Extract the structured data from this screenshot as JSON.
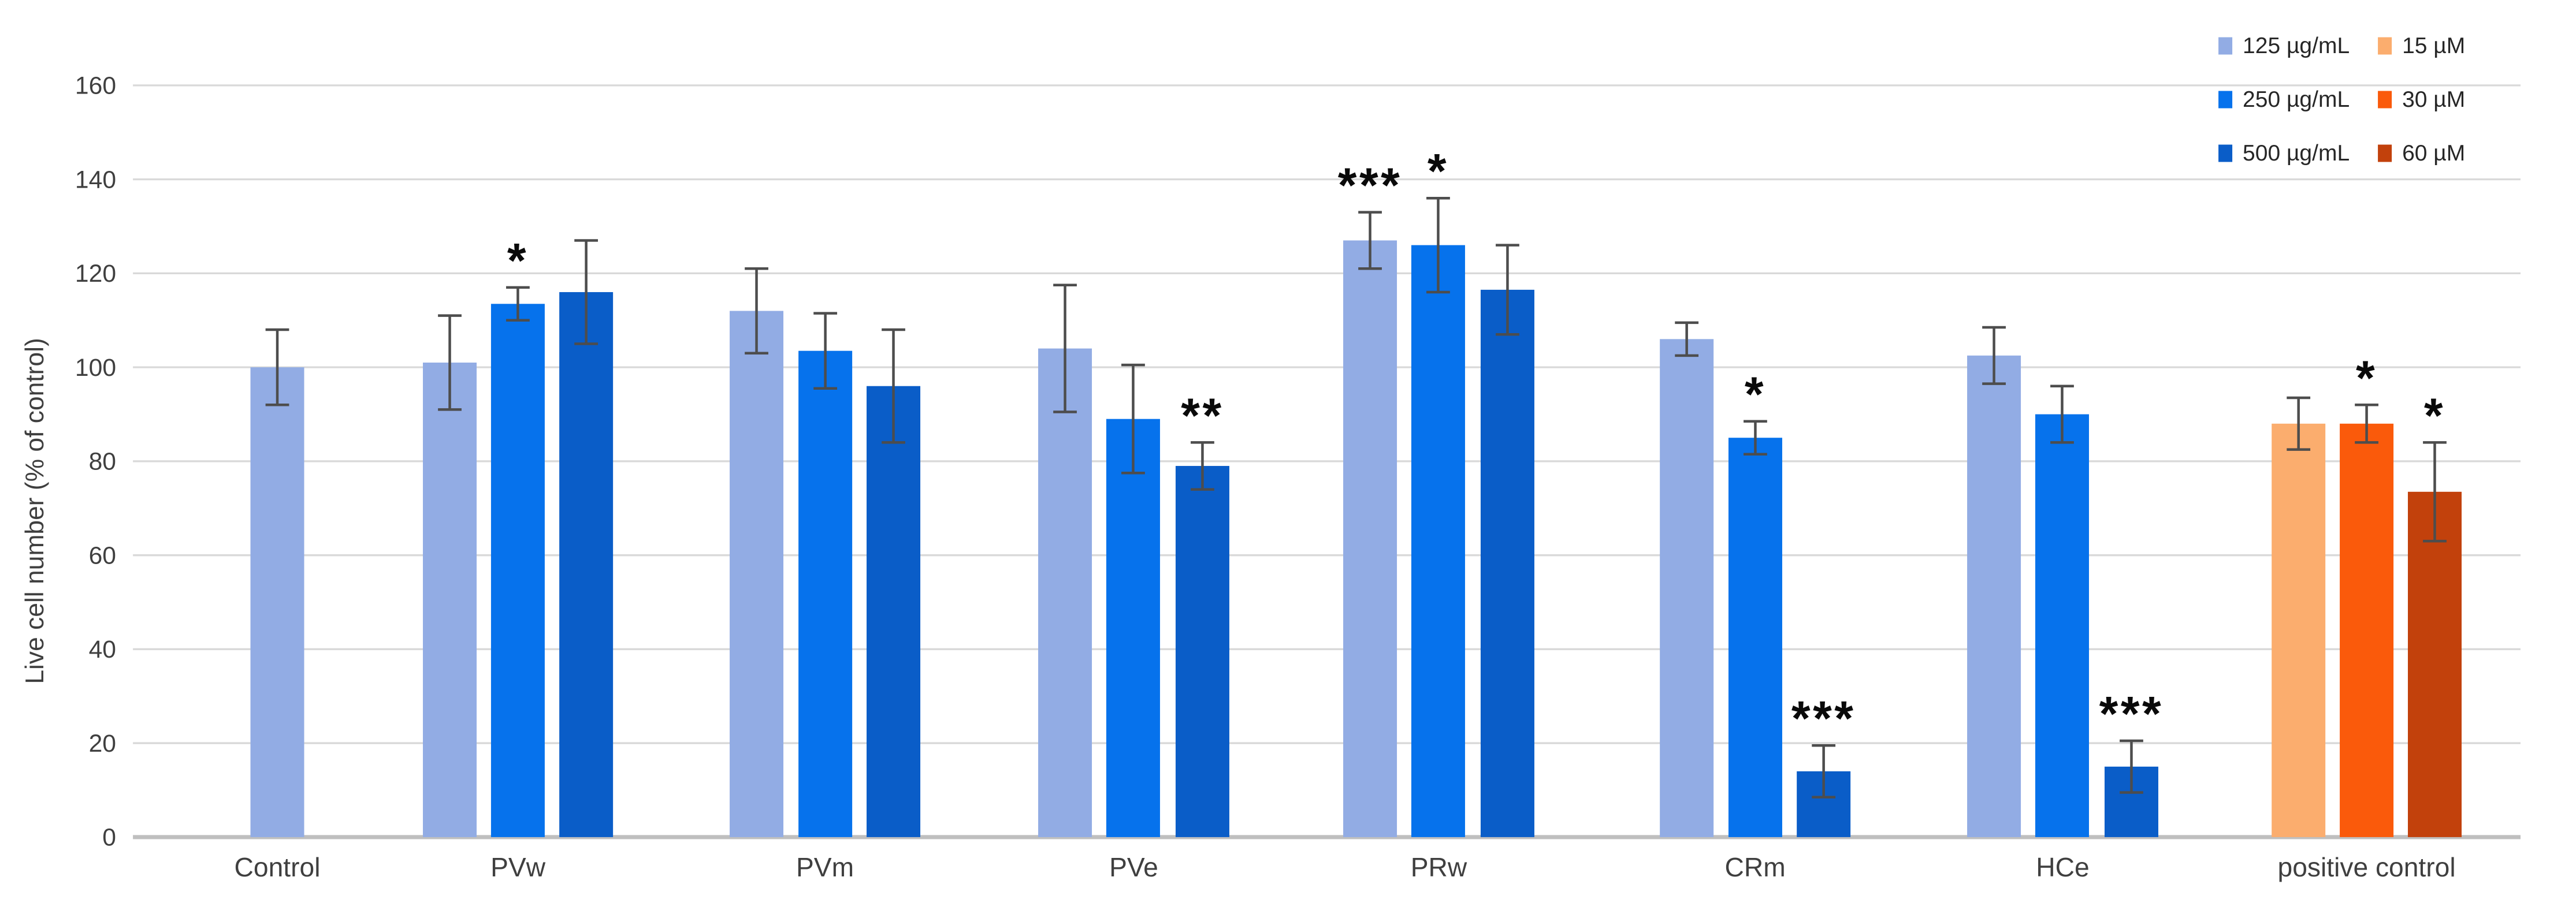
{
  "chart_data": {
    "type": "bar",
    "title": "",
    "ylabel": "Live cell number (% of control)",
    "ylim": [
      0,
      160
    ],
    "ytick_step": 20,
    "yticks": [
      0,
      20,
      40,
      60,
      80,
      100,
      120,
      140,
      160
    ],
    "grid": true,
    "legend_position": "top-right",
    "colors": {
      "gridline": "#D9D9D9",
      "axis_line": "#BFBFBF",
      "axis_text": "#3F3F3F",
      "error_bar": "#4D4D4D",
      "sig_star": "#0A0A0A",
      "legend_text": "#262626",
      "background": "#FFFFFF"
    },
    "series_colors": {
      "125 µg/mL": "#92ACE4",
      "250 µg/mL": "#0672EC",
      "500 µg/mL": "#0A5DC8",
      "15 µM": "#FBAD6E",
      "30 µM": "#FA5A0B",
      "60 µM": "#C2410C"
    },
    "legend": {
      "columns": [
        {
          "items": [
            {
              "label": "125 µg/mL",
              "color": "#92ACE4"
            },
            {
              "label": "250 µg/mL",
              "color": "#0672EC"
            },
            {
              "label": "500 µg/mL",
              "color": "#0A5DC8"
            }
          ]
        },
        {
          "items": [
            {
              "label": "15 µM",
              "color": "#FBAD6E"
            },
            {
              "label": "30 µM",
              "color": "#FA5A0B"
            },
            {
              "label": "60 µM",
              "color": "#C2410C"
            }
          ]
        }
      ]
    },
    "groups": [
      {
        "label": "Control",
        "bars": [
          {
            "series": "125 µg/mL",
            "value": 100,
            "error": 8,
            "sig": ""
          }
        ]
      },
      {
        "label": "PVw",
        "bars": [
          {
            "series": "125 µg/mL",
            "value": 101,
            "error": 10,
            "sig": ""
          },
          {
            "series": "250 µg/mL",
            "value": 113.5,
            "error": 3.5,
            "sig": "*"
          },
          {
            "series": "500 µg/mL",
            "value": 116,
            "error": 11,
            "sig": ""
          }
        ]
      },
      {
        "label": "PVm",
        "bars": [
          {
            "series": "125 µg/mL",
            "value": 112,
            "error": 9,
            "sig": ""
          },
          {
            "series": "250 µg/mL",
            "value": 103.5,
            "error": 8,
            "sig": ""
          },
          {
            "series": "500 µg/mL",
            "value": 96,
            "error": 12,
            "sig": ""
          }
        ]
      },
      {
        "label": "PVe",
        "bars": [
          {
            "series": "125 µg/mL",
            "value": 104,
            "error": 13.5,
            "sig": ""
          },
          {
            "series": "250 µg/mL",
            "value": 89,
            "error": 11.5,
            "sig": ""
          },
          {
            "series": "500 µg/mL",
            "value": 79,
            "error": 5,
            "sig": "**"
          }
        ]
      },
      {
        "label": "PRw",
        "bars": [
          {
            "series": "125 µg/mL",
            "value": 127,
            "error": 6,
            "sig": "***"
          },
          {
            "series": "250 µg/mL",
            "value": 126,
            "error": 10,
            "sig": "*"
          },
          {
            "series": "500 µg/mL",
            "value": 116.5,
            "error": 9.5,
            "sig": ""
          }
        ]
      },
      {
        "label": "CRm",
        "bars": [
          {
            "series": "125 µg/mL",
            "value": 106,
            "error": 3.5,
            "sig": ""
          },
          {
            "series": "250 µg/mL",
            "value": 85,
            "error": 3.5,
            "sig": "*"
          },
          {
            "series": "500 µg/mL",
            "value": 14,
            "error": 5.5,
            "sig": "***"
          }
        ]
      },
      {
        "label": "HCe",
        "bars": [
          {
            "series": "125 µg/mL",
            "value": 102.5,
            "error": 6,
            "sig": ""
          },
          {
            "series": "250 µg/mL",
            "value": 90,
            "error": 6,
            "sig": ""
          },
          {
            "series": "500 µg/mL",
            "value": 15,
            "error": 5.5,
            "sig": "***"
          }
        ]
      },
      {
        "label": "positive control",
        "bars": [
          {
            "series": "15 µM",
            "value": 88,
            "error": 5.5,
            "sig": ""
          },
          {
            "series": "30 µM",
            "value": 88,
            "error": 4,
            "sig": "*"
          },
          {
            "series": "60 µM",
            "value": 73.5,
            "error": 10.5,
            "sig": "*"
          }
        ]
      }
    ]
  }
}
